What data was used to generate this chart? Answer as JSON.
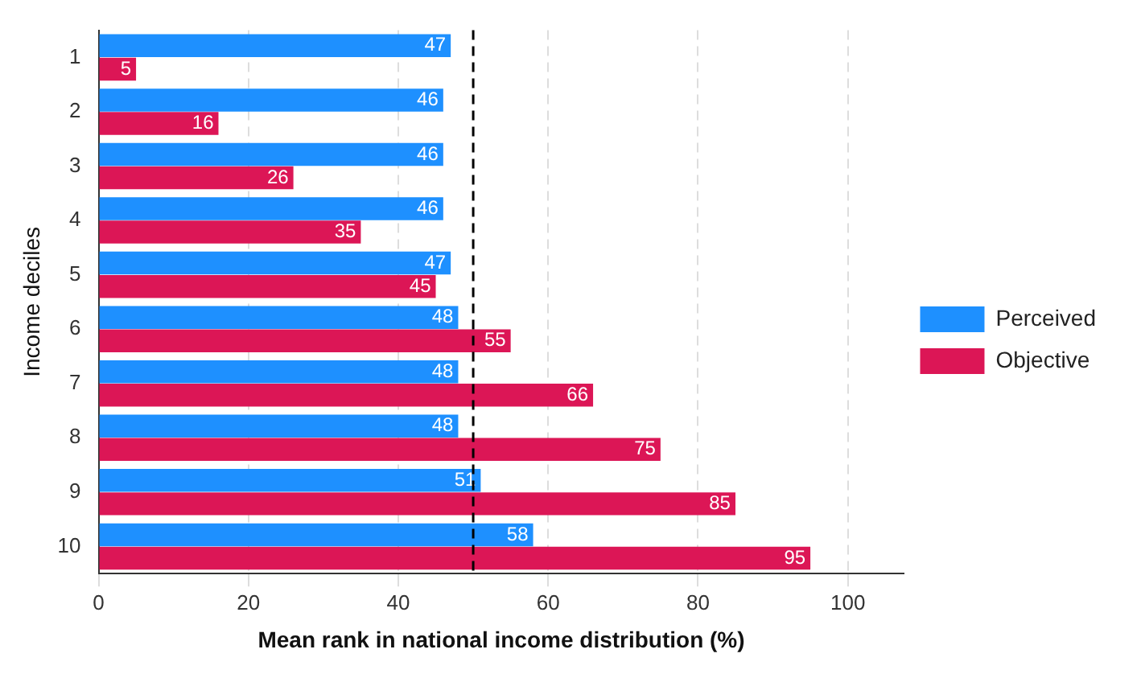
{
  "chart_data": {
    "type": "bar",
    "orientation": "horizontal",
    "xlabel": "Mean rank in national income distribution (%)",
    "ylabel": "Income deciles",
    "categories": [
      "1",
      "2",
      "3",
      "4",
      "5",
      "6",
      "7",
      "8",
      "9",
      "10"
    ],
    "series": [
      {
        "name": "Perceived",
        "color": "#1e90ff",
        "values": [
          47,
          46,
          46,
          46,
          47,
          48,
          48,
          48,
          51,
          58
        ]
      },
      {
        "name": "Objective",
        "color": "#dc1656",
        "values": [
          5,
          16,
          26,
          35,
          45,
          55,
          66,
          75,
          85,
          95
        ]
      }
    ],
    "xlim": [
      0,
      107.5
    ],
    "xticks": [
      0,
      20,
      40,
      60,
      80,
      100
    ],
    "grid": "x",
    "legend": "right",
    "data_labels": true,
    "ref_lines": [
      {
        "axis": "x",
        "value": 50,
        "line_style": "dashed",
        "color": "#000000"
      }
    ]
  }
}
